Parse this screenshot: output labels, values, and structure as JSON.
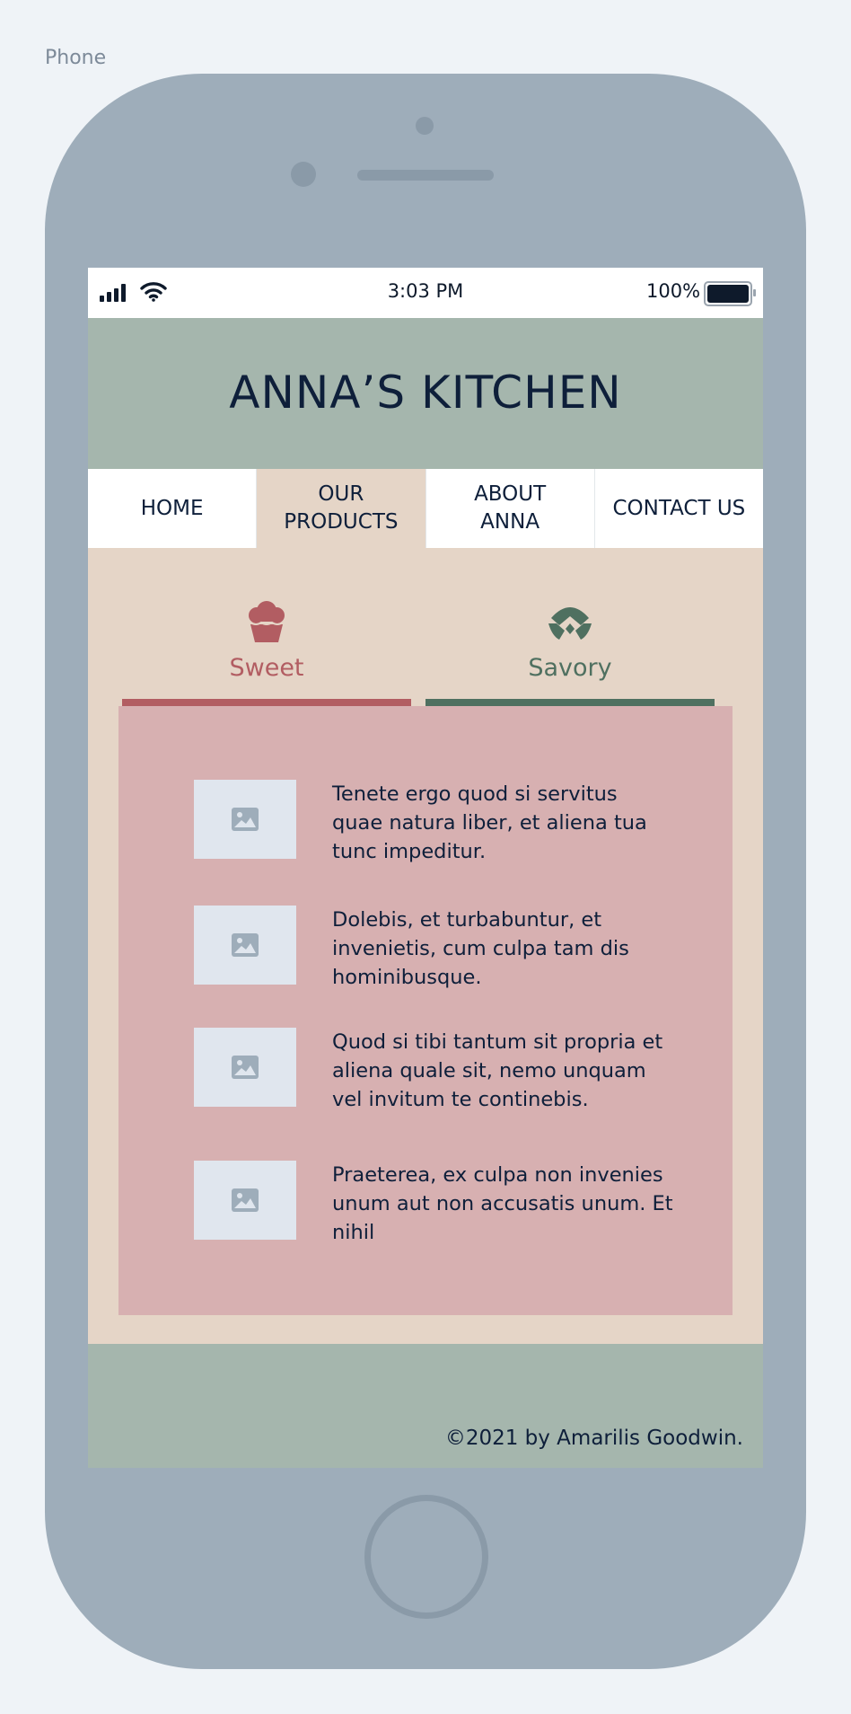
{
  "frame": {
    "label": "Phone"
  },
  "status_bar": {
    "time": "3:03 PM",
    "battery": "100%"
  },
  "site": {
    "title": "ANNA’S KITCHEN"
  },
  "nav": {
    "items": [
      {
        "label": "HOME",
        "active": false
      },
      {
        "label": "OUR PRODUCTS",
        "active": true
      },
      {
        "label": "ABOUT ANNA",
        "active": false
      },
      {
        "label": "CONTACT US",
        "active": false
      }
    ]
  },
  "tabs": {
    "sweet": {
      "label": "Sweet",
      "icon": "cupcake-icon",
      "color": "#b25d62"
    },
    "savory": {
      "label": "Savory",
      "icon": "croissant-icon",
      "color": "#4f7060"
    }
  },
  "products": [
    {
      "icon": "image-placeholder-icon",
      "text": "Tenete ergo quod si servitus quae natura liber, et aliena tua tunc impeditur."
    },
    {
      "icon": "image-placeholder-icon",
      "text": "Dolebis, et turbabuntur, et invenietis, cum culpa tam dis hominibusque."
    },
    {
      "icon": "image-placeholder-icon",
      "text": "Quod si tibi tantum sit propria et aliena quale sit, nemo unquam vel invitum te continebis."
    },
    {
      "icon": "image-placeholder-icon",
      "text": "Praeterea, ex culpa non invenies unum aut non accusatis unum. Et nihil"
    }
  ],
  "footer": {
    "copyright": "©2021 by Amarilis Goodwin."
  },
  "colors": {
    "header_bg": "#a5b6ad",
    "content_bg": "#e5d5c7",
    "panel_bg": "#d7b0b1",
    "text": "#0e1f3a",
    "device": "#9eadba"
  }
}
